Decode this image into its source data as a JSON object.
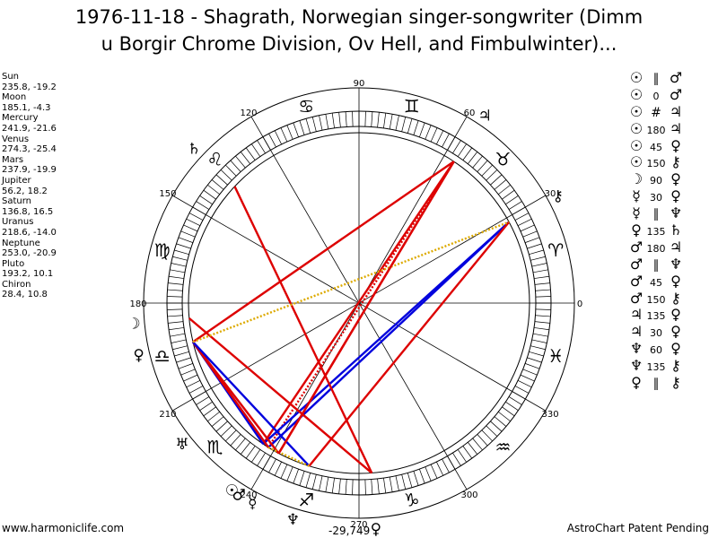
{
  "title_line1": "1976-11-18 - Shagrath, Norwegian singer-songwriter (Dimm",
  "title_line2": "u Borgir Chrome Division, Ov Hell, and Fimbulwinter)...",
  "positions": [
    {
      "name": "Sun",
      "coords": "235.8, -19.2"
    },
    {
      "name": "Moon",
      "coords": "185.1, -4.3"
    },
    {
      "name": "Mercury",
      "coords": "241.9, -21.6"
    },
    {
      "name": "Venus",
      "coords": "274.3, -25.4"
    },
    {
      "name": "Mars",
      "coords": "237.9, -19.9"
    },
    {
      "name": "Jupiter",
      "coords": "56.2, 18.2"
    },
    {
      "name": "Saturn",
      "coords": "136.8, 16.5"
    },
    {
      "name": "Uranus",
      "coords": "218.6, -14.0"
    },
    {
      "name": "Neptune",
      "coords": "253.0, -20.9"
    },
    {
      "name": "Pluto",
      "coords": "193.2, 10.1"
    },
    {
      "name": "Chiron",
      "coords": "28.4, 10.8"
    }
  ],
  "aspects": [
    {
      "p1": "☉",
      "sym": "∥",
      "p2": "♂"
    },
    {
      "p1": "☉",
      "sym": "0",
      "p2": "♂"
    },
    {
      "p1": "☉",
      "sym": "#",
      "p2": "♃"
    },
    {
      "p1": "☉",
      "sym": "180",
      "p2": "♃"
    },
    {
      "p1": "☉",
      "sym": "45",
      "p2": "♀"
    },
    {
      "p1": "☉",
      "sym": "150",
      "p2": "⚷"
    },
    {
      "p1": "☽",
      "sym": "90",
      "p2": "♀"
    },
    {
      "p1": "☿",
      "sym": "30",
      "p2": "♀"
    },
    {
      "p1": "☿",
      "sym": "∥",
      "p2": "♆"
    },
    {
      "p1": "♀",
      "sym": "135",
      "p2": "♄"
    },
    {
      "p1": "♂",
      "sym": "180",
      "p2": "♃"
    },
    {
      "p1": "♂",
      "sym": "∥",
      "p2": "♆"
    },
    {
      "p1": "♂",
      "sym": "45",
      "p2": "♀"
    },
    {
      "p1": "♂",
      "sym": "150",
      "p2": "⚷"
    },
    {
      "p1": "♃",
      "sym": "135",
      "p2": "♀"
    },
    {
      "p1": "♃",
      "sym": "30",
      "p2": "♀"
    },
    {
      "p1": "♆",
      "sym": "60",
      "p2": "♀"
    },
    {
      "p1": "♆",
      "sym": "135",
      "p2": "⚷"
    },
    {
      "p1": "♀",
      "sym": "∥",
      "p2": "⚷"
    }
  ],
  "wheel": {
    "degree_labels": [
      {
        "deg": 0,
        "text": "0"
      },
      {
        "deg": 30,
        "text": "30"
      },
      {
        "deg": 60,
        "text": "60"
      },
      {
        "deg": 90,
        "text": "90"
      },
      {
        "deg": 120,
        "text": "120"
      },
      {
        "deg": 150,
        "text": "150"
      },
      {
        "deg": 180,
        "text": "180"
      },
      {
        "deg": 210,
        "text": "210"
      },
      {
        "deg": 240,
        "text": "240"
      },
      {
        "deg": 270,
        "text": "270"
      },
      {
        "deg": 300,
        "text": "300"
      },
      {
        "deg": 330,
        "text": "330"
      }
    ],
    "signs": [
      {
        "name": "aries",
        "glyph": "♈",
        "deg": 15
      },
      {
        "name": "taurus",
        "glyph": "♉",
        "deg": 45
      },
      {
        "name": "gemini",
        "glyph": "♊",
        "deg": 75
      },
      {
        "name": "cancer",
        "glyph": "♋",
        "deg": 105
      },
      {
        "name": "leo",
        "glyph": "♌",
        "deg": 135
      },
      {
        "name": "virgo",
        "glyph": "♍",
        "deg": 165
      },
      {
        "name": "libra",
        "glyph": "♎",
        "deg": 195
      },
      {
        "name": "scorpio",
        "glyph": "♏",
        "deg": 225
      },
      {
        "name": "sagittarius",
        "glyph": "♐",
        "deg": 255
      },
      {
        "name": "capricorn",
        "glyph": "♑",
        "deg": 285
      },
      {
        "name": "aquarius",
        "glyph": "♒",
        "deg": 315
      },
      {
        "name": "pisces",
        "glyph": "♓",
        "deg": 345
      }
    ],
    "planets": [
      {
        "name": "sun",
        "glyph": "☉",
        "lon": 235.8
      },
      {
        "name": "moon",
        "glyph": "☽",
        "lon": 185.1
      },
      {
        "name": "mercury",
        "glyph": "☿",
        "lon": 241.9
      },
      {
        "name": "venus",
        "glyph": "♀",
        "lon": 274.3
      },
      {
        "name": "mars",
        "glyph": "♂",
        "lon": 237.9
      },
      {
        "name": "jupiter",
        "glyph": "♃",
        "lon": 56.2
      },
      {
        "name": "saturn",
        "glyph": "♄",
        "lon": 136.8
      },
      {
        "name": "uranus",
        "glyph": "♅",
        "lon": 218.6
      },
      {
        "name": "neptune",
        "glyph": "♆",
        "lon": 253.0
      },
      {
        "name": "pluto",
        "glyph": "♀",
        "lon": 193.2
      },
      {
        "name": "chiron",
        "glyph": "⚷",
        "lon": 28.4
      }
    ],
    "aspect_lines": [
      {
        "a": 235.8,
        "b": 56.2,
        "color": "#dd0000",
        "style": "solid"
      },
      {
        "a": 237.9,
        "b": 56.2,
        "color": "#dd0000",
        "style": "dotted"
      },
      {
        "a": 235.8,
        "b": 193.2,
        "color": "#0000dd",
        "style": "solid"
      },
      {
        "a": 237.9,
        "b": 193.2,
        "color": "#0000dd",
        "style": "solid"
      },
      {
        "a": 235.8,
        "b": 28.4,
        "color": "#0000dd",
        "style": "solid"
      },
      {
        "a": 237.9,
        "b": 28.4,
        "color": "#0000dd",
        "style": "solid"
      },
      {
        "a": 185.1,
        "b": 274.3,
        "color": "#dd0000",
        "style": "solid"
      },
      {
        "a": 241.9,
        "b": 193.2,
        "color": "#dd0000",
        "style": "solid"
      },
      {
        "a": 274.3,
        "b": 136.8,
        "color": "#dd0000",
        "style": "solid"
      },
      {
        "a": 237.9,
        "b": 193.2,
        "color": "#dd0000",
        "style": "solid"
      },
      {
        "a": 56.2,
        "b": 193.2,
        "color": "#dd0000",
        "style": "solid"
      },
      {
        "a": 56.2,
        "b": 241.9,
        "color": "#dd0000",
        "style": "solid"
      },
      {
        "a": 253.0,
        "b": 193.2,
        "color": "#0000dd",
        "style": "solid"
      },
      {
        "a": 253.0,
        "b": 28.4,
        "color": "#dd0000",
        "style": "solid"
      },
      {
        "a": 193.2,
        "b": 28.4,
        "color": "#ddaa00",
        "style": "dotted"
      },
      {
        "a": 237.9,
        "b": 253.0,
        "color": "#ddaa00",
        "style": "dotted"
      },
      {
        "a": 241.9,
        "b": 56.2,
        "color": "#dd0000",
        "style": "solid"
      }
    ]
  },
  "footer_left": "www.harmoniclife.com",
  "footer_center": "-29,749",
  "footer_right": "AstroChart Patent Pending"
}
